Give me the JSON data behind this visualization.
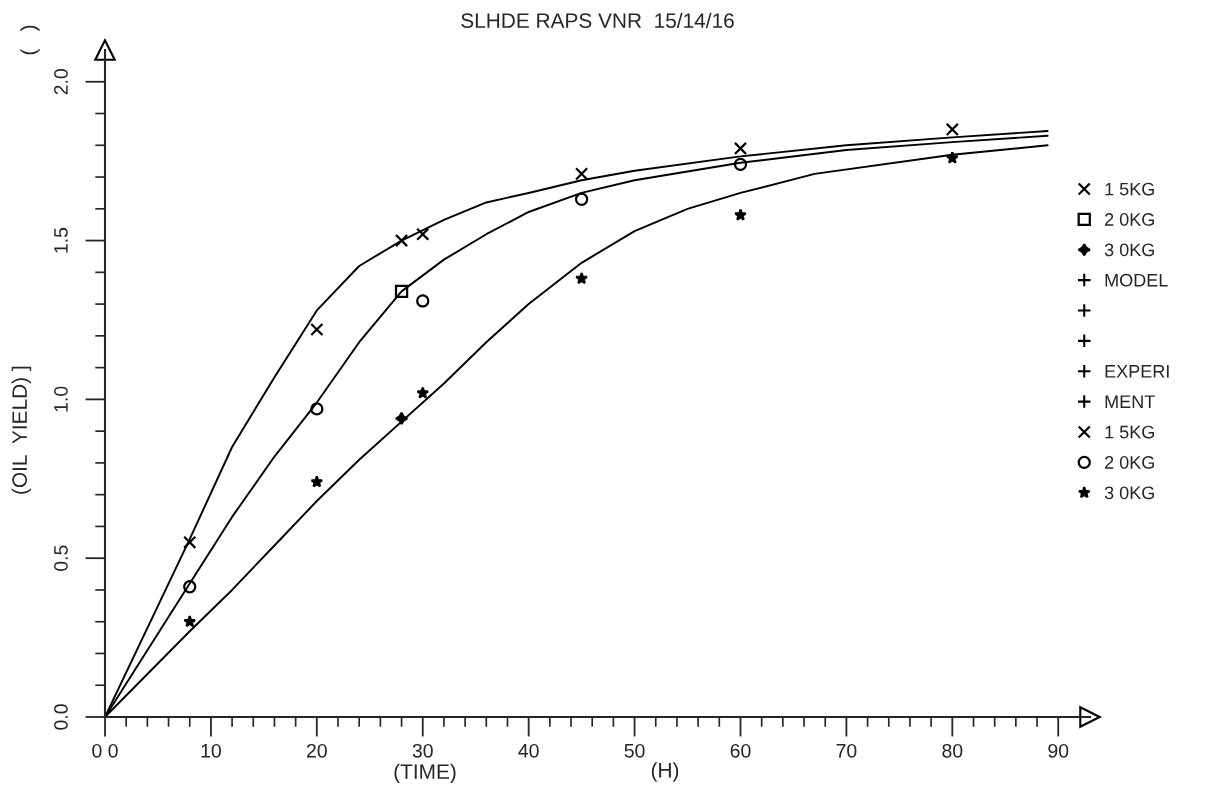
{
  "chart_data": {
    "type": "line",
    "title": "SLHDE RAPS VNR  15/14/16",
    "xlabel": "(TIME)",
    "ylabel": "(OIL  YIELD) ]",
    "annotations": [
      "(   )",
      "(H)",
      "MODEL",
      "EXPERI",
      "MENT"
    ],
    "xlim": [
      0,
      93
    ],
    "ylim": [
      0,
      2.1
    ],
    "xticks": [
      {
        "value": 0,
        "label": "0 0"
      },
      {
        "value": 2,
        "label": null
      },
      {
        "value": 4,
        "label": null
      },
      {
        "value": 6,
        "label": null
      },
      {
        "value": 8,
        "label": null
      },
      10,
      {
        "value": 12,
        "label": null
      },
      {
        "value": 14,
        "label": null
      },
      {
        "value": 16,
        "label": null
      },
      {
        "value": 18,
        "label": null
      },
      20,
      {
        "value": 22,
        "label": null
      },
      {
        "value": 24,
        "label": null
      },
      {
        "value": 26,
        "label": null
      },
      {
        "value": 28,
        "label": null
      },
      30,
      {
        "value": 32,
        "label": null
      },
      {
        "value": 34,
        "label": null
      },
      {
        "value": 36,
        "label": null
      },
      {
        "value": 38,
        "label": null
      },
      40,
      {
        "value": 42,
        "label": null
      },
      {
        "value": 44,
        "label": null
      },
      {
        "value": 46,
        "label": null
      },
      {
        "value": 48,
        "label": null
      },
      50,
      {
        "value": 52,
        "label": null
      },
      {
        "value": 54,
        "label": null
      },
      {
        "value": 56,
        "label": null
      },
      {
        "value": 58,
        "label": null
      },
      60,
      {
        "value": 62,
        "label": null
      },
      {
        "value": 64,
        "label": null
      },
      {
        "value": 66,
        "label": null
      },
      {
        "value": 68,
        "label": null
      },
      70,
      {
        "value": 72,
        "label": null
      },
      {
        "value": 74,
        "label": null
      },
      {
        "value": 76,
        "label": null
      },
      {
        "value": 78,
        "label": null
      },
      80,
      {
        "value": 82,
        "label": null
      },
      {
        "value": 84,
        "label": null
      },
      {
        "value": 86,
        "label": null
      },
      {
        "value": 88,
        "label": null
      },
      90
    ],
    "yticks": [
      {
        "value": 0,
        "label": "0.0"
      },
      {
        "value": 0.1,
        "label": null
      },
      {
        "value": 0.2,
        "label": null
      },
      {
        "value": 0.3,
        "label": null
      },
      {
        "value": 0.4,
        "label": null
      },
      {
        "value": 0.5,
        "label": "0.5"
      },
      {
        "value": 0.6,
        "label": null
      },
      {
        "value": 0.7,
        "label": null
      },
      {
        "value": 0.8,
        "label": null
      },
      {
        "value": 0.9,
        "label": null
      },
      {
        "value": 1.0,
        "label": "1.0"
      },
      {
        "value": 1.1,
        "label": null
      },
      {
        "value": 1.2,
        "label": null
      },
      {
        "value": 1.3,
        "label": null
      },
      {
        "value": 1.4,
        "label": null
      },
      {
        "value": 1.5,
        "label": "1.5"
      },
      {
        "value": 1.6,
        "label": null
      },
      {
        "value": 1.7,
        "label": null
      },
      {
        "value": 1.8,
        "label": null
      },
      {
        "value": 1.9,
        "label": null
      },
      {
        "value": 2.0,
        "label": "2.0"
      }
    ],
    "grid": false,
    "legend": "right",
    "series": [
      {
        "color": "#000000",
        "marker": "none",
        "x": [
          0,
          8,
          12,
          16,
          20,
          24,
          28,
          32,
          36,
          40,
          45,
          50,
          60,
          70,
          80,
          89
        ],
        "values": [
          0,
          0.56,
          0.85,
          1.07,
          1.28,
          1.42,
          1.5,
          1.565,
          1.62,
          1.65,
          1.69,
          1.72,
          1.765,
          1.8,
          1.825,
          1.845
        ]
      },
      {
        "color": "#000000",
        "marker": "none",
        "x": [
          0,
          8,
          12,
          16,
          20,
          24,
          28,
          32,
          36,
          40,
          45,
          50,
          60,
          70,
          80,
          89
        ],
        "values": [
          0,
          0.42,
          0.63,
          0.82,
          0.99,
          1.18,
          1.34,
          1.44,
          1.52,
          1.59,
          1.65,
          1.69,
          1.745,
          1.785,
          1.81,
          1.83
        ]
      },
      {
        "color": "#000000",
        "marker": "none",
        "x": [
          0,
          8,
          12,
          16,
          20,
          24,
          28,
          32,
          36,
          40,
          45,
          50,
          55,
          60,
          67,
          80,
          89
        ],
        "values": [
          0,
          0.27,
          0.4,
          0.54,
          0.68,
          0.81,
          0.93,
          1.05,
          1.18,
          1.3,
          1.43,
          1.53,
          1.6,
          1.65,
          1.71,
          1.77,
          1.8
        ]
      },
      {
        "type": "scatter",
        "name": "1 5KG",
        "color": "#000000",
        "marker": "cross",
        "x": [
          28
        ],
        "values": [
          1.5
        ]
      },
      {
        "type": "scatter",
        "name": "2 0KG",
        "color": "#000000",
        "marker": "square",
        "x": [
          28
        ],
        "values": [
          1.34
        ]
      },
      {
        "type": "scatter",
        "name": "3 0KG",
        "color": "#000000",
        "marker": "diamond",
        "x": [
          28
        ],
        "values": [
          0.94
        ]
      },
      {
        "type": "scatter",
        "name": "1 5KG",
        "color": "#000000",
        "marker": "cross",
        "x": [
          8,
          20,
          30,
          45,
          60,
          80
        ],
        "values": [
          0.55,
          1.22,
          1.52,
          1.71,
          1.79,
          1.85
        ]
      },
      {
        "type": "scatter",
        "name": "2 0KG",
        "color": "#000000",
        "marker": "circle",
        "x": [
          8,
          20,
          30,
          45,
          60
        ],
        "values": [
          0.41,
          0.97,
          1.31,
          1.63,
          1.74
        ]
      },
      {
        "type": "scatter",
        "name": "3 0KG",
        "color": "#000000",
        "marker": "star",
        "x": [
          8,
          20,
          30,
          45,
          60,
          80
        ],
        "values": [
          0.3,
          0.74,
          1.02,
          1.38,
          1.58,
          1.76
        ]
      }
    ]
  }
}
